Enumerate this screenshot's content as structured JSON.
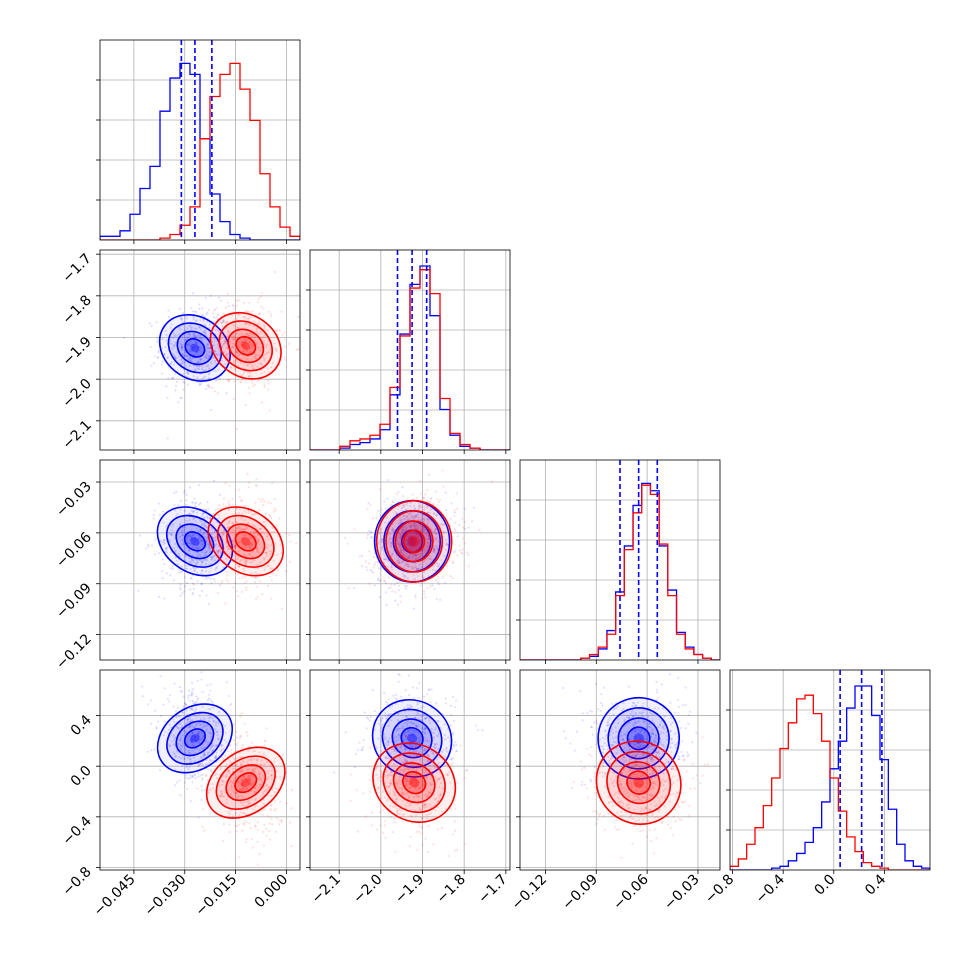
{
  "chart_data": {
    "type": "corner",
    "title": "",
    "series": [
      {
        "name": "",
        "color": "#0000ff"
      },
      {
        "name": "",
        "color": "#ff0000"
      }
    ],
    "grid": true,
    "parameters": [
      {
        "index": 0,
        "range": [
          -0.055,
          0.004
        ],
        "ticks": [
          -0.045,
          -0.03,
          -0.015,
          0.0
        ],
        "tick_labels": [
          "−0.045",
          "−0.030",
          "−0.015",
          "0.000"
        ]
      },
      {
        "index": 1,
        "range": [
          -2.17,
          -1.69
        ],
        "ticks": [
          -2.1,
          -2.0,
          -1.9,
          -1.8,
          -1.7
        ],
        "tick_labels": [
          "−2.1",
          "−2.0",
          "−1.9",
          "−1.8",
          "−1.7"
        ]
      },
      {
        "index": 2,
        "range": [
          -0.135,
          -0.017
        ],
        "ticks": [
          -0.12,
          -0.09,
          -0.06,
          -0.03
        ],
        "tick_labels": [
          "−0.12",
          "−0.09",
          "−0.06",
          "−0.03"
        ]
      },
      {
        "index": 3,
        "range": [
          -0.82,
          0.76
        ],
        "ticks": [
          -0.8,
          -0.4,
          0.0,
          0.4
        ],
        "tick_labels": [
          "−0.8",
          "−0.4",
          "0.0",
          "0.4"
        ]
      }
    ],
    "blue": {
      "mean": [
        -0.027,
        -1.925,
        -0.065,
        0.22
      ],
      "std": [
        0.0045,
        0.045,
        0.012,
        0.16
      ],
      "corr": [
        [
          1,
          0,
          0,
          -0.2
        ],
        [
          0,
          1,
          0.1,
          0
        ],
        [
          0,
          0.1,
          1,
          0
        ],
        [
          -0.2,
          0,
          0,
          1
        ]
      ],
      "quantiles": [
        [
          -0.031,
          -0.027,
          -0.022
        ],
        [
          -1.96,
          -1.925,
          -1.89
        ],
        [
          -0.076,
          -0.065,
          -0.054
        ],
        [
          0.05,
          0.22,
          0.38
        ]
      ],
      "hist_y": [
        [
          0.02,
          0.02,
          0.05,
          0.14,
          0.28,
          0.4,
          0.7,
          0.88,
          0.96,
          0.9,
          0.55,
          0.25,
          0.1,
          0.03,
          0.01,
          0,
          0,
          0,
          0,
          0
        ],
        [
          0,
          0,
          0,
          0.01,
          0.03,
          0.04,
          0.06,
          0.11,
          0.3,
          0.63,
          0.9,
          1.0,
          0.73,
          0.22,
          0.08,
          0.02,
          0.01,
          0,
          0,
          0
        ],
        [
          0,
          0,
          0,
          0,
          0,
          0,
          0,
          0.01,
          0.02,
          0.06,
          0.16,
          0.37,
          0.62,
          0.84,
          0.96,
          0.92,
          0.62,
          0.38,
          0.15,
          0.07,
          0.03,
          0.01,
          0
        ],
        [
          0,
          0,
          0,
          0,
          0,
          0.01,
          0.02,
          0.05,
          0.09,
          0.15,
          0.23,
          0.37,
          0.55,
          0.7,
          0.88,
          1.0,
          1.0,
          0.84,
          0.6,
          0.33,
          0.14,
          0.05,
          0.02,
          0.01
        ]
      ]
    },
    "red": {
      "mean": [
        -0.012,
        -1.92,
        -0.065,
        -0.13
      ],
      "std": [
        0.0045,
        0.045,
        0.012,
        0.17
      ],
      "corr": [
        [
          1,
          0,
          0,
          -0.2
        ],
        [
          0,
          1,
          0.1,
          0
        ],
        [
          0,
          0.1,
          1,
          0
        ],
        [
          -0.2,
          0,
          0,
          1
        ]
      ],
      "quantiles": [
        [
          -0.016,
          -0.012,
          -0.008
        ],
        [
          -1.955,
          -1.92,
          -1.885
        ],
        [
          -0.076,
          -0.065,
          -0.054
        ],
        [
          -0.29,
          -0.13,
          0.03
        ]
      ],
      "hist_y": [
        [
          0,
          0,
          0,
          0,
          0,
          0,
          0.01,
          0.03,
          0.08,
          0.18,
          0.55,
          0.78,
          0.9,
          0.96,
          0.82,
          0.65,
          0.36,
          0.18,
          0.07,
          0.02
        ],
        [
          0,
          0,
          0,
          0.02,
          0.05,
          0.06,
          0.08,
          0.14,
          0.34,
          0.62,
          0.88,
          0.98,
          0.85,
          0.28,
          0.09,
          0.03,
          0.01,
          0,
          0,
          0
        ],
        [
          0,
          0,
          0,
          0,
          0,
          0,
          0,
          0.01,
          0.03,
          0.07,
          0.14,
          0.35,
          0.6,
          0.8,
          0.95,
          0.9,
          0.63,
          0.35,
          0.14,
          0.06,
          0.03,
          0.01,
          0
        ],
        [
          0.02,
          0.06,
          0.14,
          0.23,
          0.35,
          0.5,
          0.66,
          0.8,
          0.93,
          0.95,
          0.85,
          0.7,
          0.5,
          0.32,
          0.18,
          0.1,
          0.04,
          0.02,
          0.01,
          0,
          0,
          0,
          0,
          0
        ]
      ]
    }
  }
}
